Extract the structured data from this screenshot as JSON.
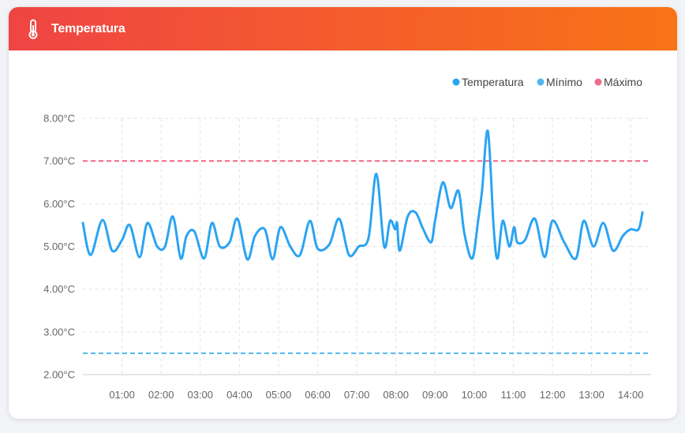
{
  "card": {
    "title": "Temperatura",
    "icon": "thermometer-icon"
  },
  "chart_data": {
    "type": "line",
    "title": "",
    "xlabel": "",
    "ylabel": "",
    "x_unit": "hours",
    "xlim": [
      0.0,
      14.52
    ],
    "ylim": [
      2.0,
      8.0
    ],
    "y_ticks": [
      2,
      3,
      4,
      5,
      6,
      7,
      8
    ],
    "y_tick_labels": [
      "2.00°C",
      "3.00°C",
      "4.00°C",
      "5.00°C",
      "6.00°C",
      "7.00°C",
      "8.00°C"
    ],
    "x_ticks": [
      1,
      2,
      3,
      4,
      5,
      6,
      7,
      8,
      9,
      10,
      11,
      12,
      13,
      14
    ],
    "x_tick_labels": [
      "01:00",
      "02:00",
      "03:00",
      "04:00",
      "05:00",
      "06:00",
      "07:00",
      "08:00",
      "09:00",
      "10:00",
      "11:00",
      "12:00",
      "13:00",
      "14:00"
    ],
    "grid": true,
    "legend_position": "top-right",
    "legend": [
      "Temperatura",
      "Mínimo",
      "Máximo"
    ],
    "series": [
      {
        "name": "Temperatura",
        "color": "#2ba4f2",
        "x": [
          0.0,
          0.2,
          0.5,
          0.75,
          1.0,
          1.2,
          1.45,
          1.65,
          1.9,
          2.1,
          2.3,
          2.5,
          2.65,
          2.85,
          3.1,
          3.3,
          3.5,
          3.75,
          3.95,
          4.2,
          4.4,
          4.65,
          4.85,
          5.05,
          5.3,
          5.55,
          5.8,
          6.0,
          6.3,
          6.55,
          6.8,
          7.05,
          7.3,
          7.5,
          7.7,
          7.85,
          7.98,
          8.03,
          8.1,
          8.3,
          8.5,
          8.7,
          8.9,
          9.0,
          9.2,
          9.4,
          9.6,
          9.75,
          9.95,
          10.1,
          10.2,
          10.35,
          10.5,
          10.6,
          10.73,
          10.9,
          11.02,
          11.1,
          11.3,
          11.55,
          11.8,
          12.0,
          12.3,
          12.6,
          12.8,
          13.05,
          13.3,
          13.55,
          13.8,
          14.0,
          14.2,
          14.3
        ],
        "values": [
          5.55,
          4.8,
          5.62,
          4.9,
          5.15,
          5.5,
          4.75,
          5.55,
          5.0,
          5.0,
          5.7,
          4.72,
          5.25,
          5.35,
          4.72,
          5.55,
          5.0,
          5.1,
          5.65,
          4.7,
          5.25,
          5.4,
          4.7,
          5.45,
          5.0,
          4.8,
          5.6,
          4.95,
          5.05,
          5.65,
          4.8,
          5.0,
          5.2,
          6.7,
          5.0,
          5.6,
          5.4,
          5.55,
          4.9,
          5.7,
          5.8,
          5.4,
          5.1,
          5.6,
          6.5,
          5.9,
          6.3,
          5.3,
          4.72,
          5.6,
          6.3,
          7.7,
          5.4,
          4.72,
          5.6,
          5.0,
          5.45,
          5.1,
          5.15,
          5.65,
          4.75,
          5.6,
          5.1,
          4.72,
          5.6,
          5.0,
          5.55,
          4.9,
          5.25,
          5.4,
          5.4,
          5.8
        ]
      },
      {
        "name": "Mínimo",
        "color": "#4fb6ee",
        "dashed": true,
        "x": [
          0.0,
          14.52
        ],
        "values": [
          2.5,
          2.5
        ]
      },
      {
        "name": "Máximo",
        "color": "#f06b8a",
        "dashed": true,
        "x": [
          0.0,
          14.52
        ],
        "values": [
          7.0,
          7.0
        ]
      }
    ]
  }
}
